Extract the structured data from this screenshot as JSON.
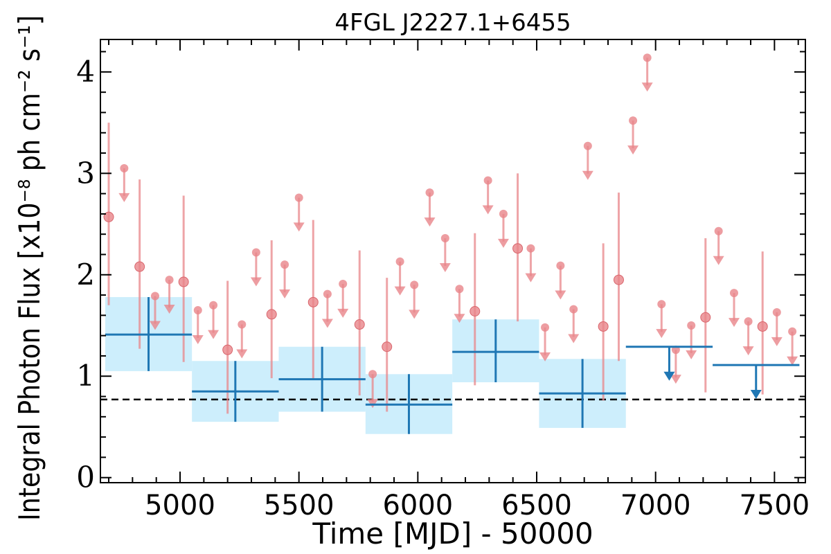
{
  "chart_data": {
    "type": "scatter",
    "title": "4FGL J2227.1+6455",
    "xlabel": "Time [MJD] - 50000",
    "ylabel": "Integral Photon Flux [x10⁻⁸ ph cm⁻² s⁻¹]",
    "xlim": [
      4665,
      7630
    ],
    "ylim": [
      -0.05,
      4.32
    ],
    "x_ticks": [
      5000,
      5500,
      6000,
      6500,
      7000,
      7500
    ],
    "y_ticks": [
      0,
      1,
      2,
      3,
      4
    ],
    "grid": false,
    "reference_line": {
      "y": 0.77,
      "style": "dashed",
      "color": "#000000"
    },
    "colors": {
      "short_bins": "#e8858a",
      "long_bins": "#1f77b4",
      "long_bin_band": "#cdeefc"
    },
    "series": [
      {
        "points": [
          {
            "x": 4700,
            "y": 2.57,
            "err": [
              1.7,
              3.5
            ]
          },
          {
            "x": 4830,
            "y": 2.08,
            "err": [
              1.27,
              2.94
            ]
          },
          {
            "x": 5015,
            "y": 1.93,
            "err": [
              1.14,
              2.78
            ]
          },
          {
            "x": 5200,
            "y": 1.26,
            "err": [
              0.63,
              1.94
            ]
          },
          {
            "x": 5385,
            "y": 1.61,
            "err": [
              0.98,
              2.34
            ]
          },
          {
            "x": 5560,
            "y": 1.73,
            "err": [
              0.97,
              2.54
            ]
          },
          {
            "x": 5755,
            "y": 1.51,
            "err": [
              0.81,
              2.24
            ]
          },
          {
            "x": 5870,
            "y": 1.29,
            "err": [
              0.65,
              1.97
            ]
          },
          {
            "x": 6240,
            "y": 1.64,
            "err": [
              0.91,
              2.41
            ]
          },
          {
            "x": 6420,
            "y": 2.26,
            "err": [
              1.54,
              3.0
            ]
          },
          {
            "x": 6780,
            "y": 1.49,
            "err": [
              0.76,
              2.31
            ]
          },
          {
            "x": 6845,
            "y": 1.95,
            "err": [
              1.15,
              2.81
            ]
          },
          {
            "x": 7210,
            "y": 1.58,
            "err": [
              0.84,
              2.36
            ]
          },
          {
            "x": 7450,
            "y": 1.49,
            "err": [
              0.82,
              2.23
            ]
          }
        ],
        "upper_limits": [
          {
            "x": 4765,
            "y": 3.05
          },
          {
            "x": 4895,
            "y": 1.79
          },
          {
            "x": 4955,
            "y": 1.95
          },
          {
            "x": 5075,
            "y": 1.65
          },
          {
            "x": 5140,
            "y": 1.7
          },
          {
            "x": 5260,
            "y": 1.51
          },
          {
            "x": 5320,
            "y": 2.22
          },
          {
            "x": 5440,
            "y": 2.1
          },
          {
            "x": 5500,
            "y": 2.76
          },
          {
            "x": 5620,
            "y": 1.81
          },
          {
            "x": 5685,
            "y": 1.91
          },
          {
            "x": 5810,
            "y": 1.02
          },
          {
            "x": 5925,
            "y": 2.13
          },
          {
            "x": 5985,
            "y": 1.9
          },
          {
            "x": 6050,
            "y": 2.81
          },
          {
            "x": 6115,
            "y": 2.36
          },
          {
            "x": 6175,
            "y": 1.86
          },
          {
            "x": 6295,
            "y": 2.93
          },
          {
            "x": 6360,
            "y": 2.6
          },
          {
            "x": 6475,
            "y": 2.26
          },
          {
            "x": 6535,
            "y": 1.48
          },
          {
            "x": 6600,
            "y": 2.09
          },
          {
            "x": 6655,
            "y": 1.66
          },
          {
            "x": 6715,
            "y": 3.27
          },
          {
            "x": 6905,
            "y": 3.52
          },
          {
            "x": 6965,
            "y": 4.14
          },
          {
            "x": 7025,
            "y": 1.71
          },
          {
            "x": 7085,
            "y": 1.26
          },
          {
            "x": 7150,
            "y": 1.5
          },
          {
            "x": 7265,
            "y": 2.43
          },
          {
            "x": 7330,
            "y": 1.82
          },
          {
            "x": 7390,
            "y": 1.54
          },
          {
            "x": 7510,
            "y": 1.63
          },
          {
            "x": 7575,
            "y": 1.44
          }
        ]
      },
      {
        "bins": [
          {
            "x0": 4685,
            "x1": 5050,
            "y": 1.41,
            "err": [
              1.05,
              1.78
            ]
          },
          {
            "x0": 5050,
            "x1": 5415,
            "y": 0.85,
            "err": [
              0.55,
              1.15
            ]
          },
          {
            "x0": 5415,
            "x1": 5780,
            "y": 0.97,
            "err": [
              0.65,
              1.29
            ]
          },
          {
            "x0": 5780,
            "x1": 6145,
            "y": 0.72,
            "err": [
              0.43,
              1.02
            ]
          },
          {
            "x0": 6145,
            "x1": 6510,
            "y": 1.24,
            "err": [
              0.94,
              1.56
            ]
          },
          {
            "x0": 6510,
            "x1": 6875,
            "y": 0.83,
            "err": [
              0.49,
              1.17
            ]
          }
        ],
        "upper_limits": [
          {
            "x0": 6875,
            "x1": 7240,
            "y": 1.29
          },
          {
            "x0": 7240,
            "x1": 7605,
            "y": 1.11
          }
        ]
      }
    ]
  }
}
